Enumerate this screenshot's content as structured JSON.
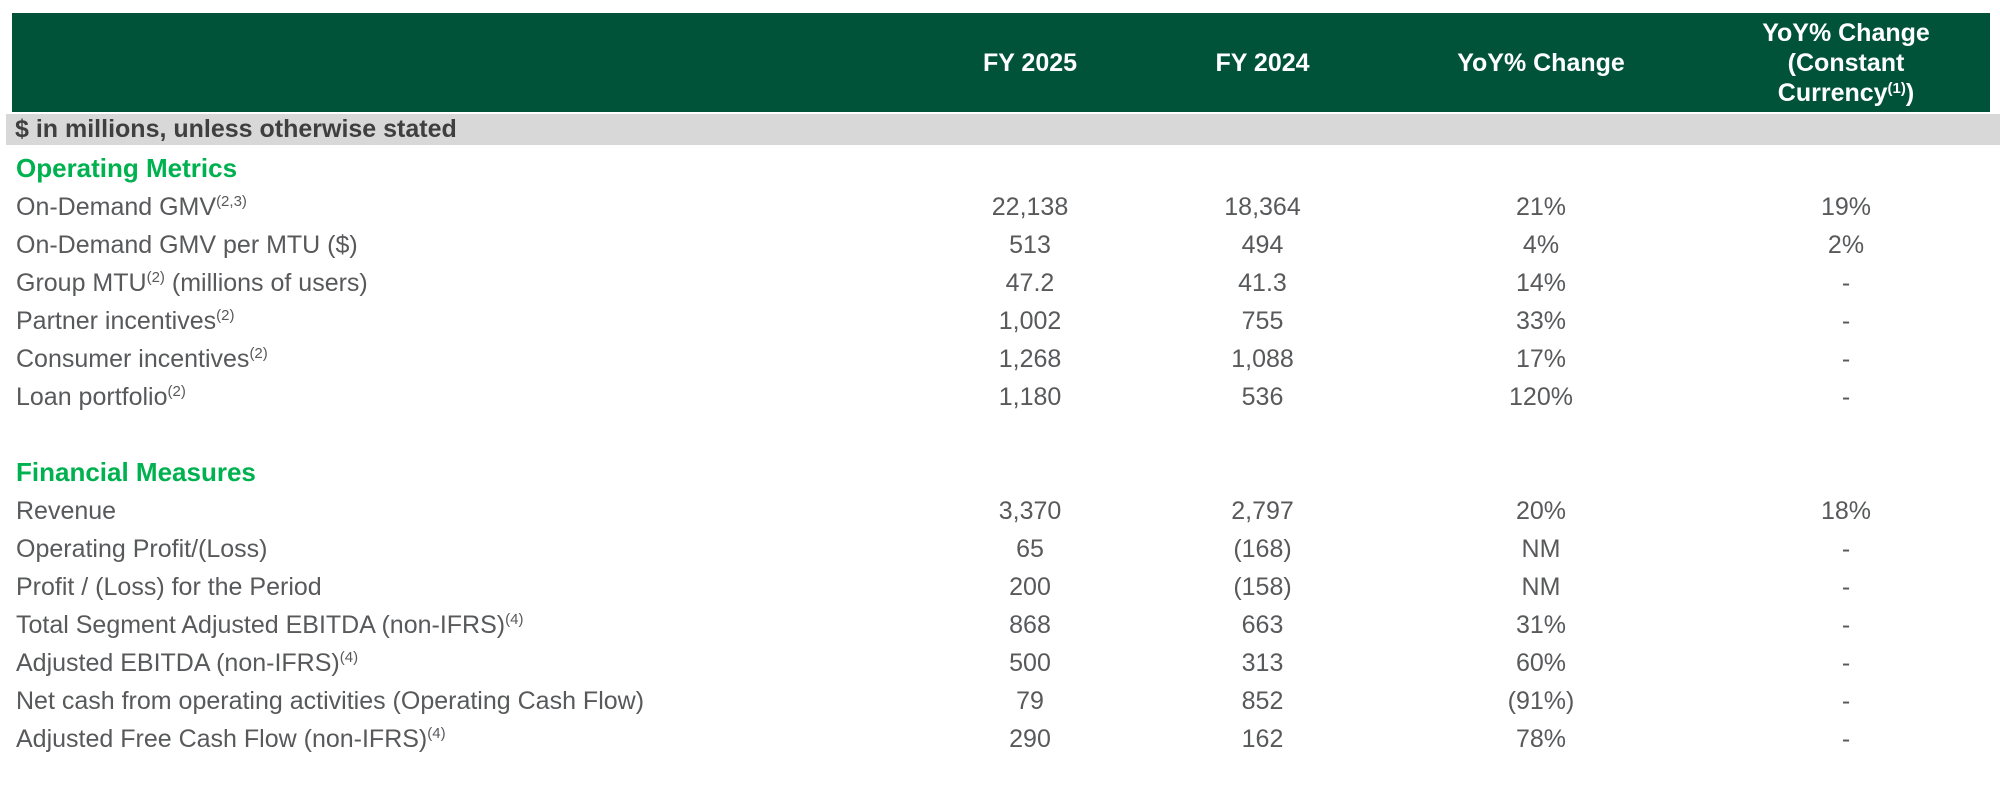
{
  "colors": {
    "header_bg": "#005339",
    "section_green": "#00B14F",
    "band_bg": "#D8D8D8",
    "band_text": "#3F3F3F",
    "row_text": "#58595B",
    "header_text": "#ffffff"
  },
  "header": {
    "col_fy2025": "FY 2025",
    "col_fy2024": "FY 2024",
    "col_yoy": "YoY% Change",
    "col_yoycc_line1": "YoY% Change",
    "col_yoycc_line2": "(Constant",
    "col_yoycc_line3_pre": "Currency",
    "col_yoycc_sup": "(1)",
    "col_yoycc_line3_post": ")"
  },
  "unit_note": "$ in millions, unless otherwise stated",
  "sections": {
    "operating": {
      "title": "Operating Metrics"
    },
    "financial": {
      "title": "Financial Measures"
    }
  },
  "rows": [
    {
      "pre": "On-Demand GMV",
      "sup": "(2,3)",
      "post": "",
      "v": [
        "22,138",
        "18,364",
        "21%",
        "19%"
      ]
    },
    {
      "pre": "On-Demand GMV per MTU ($)",
      "sup": "",
      "post": "",
      "v": [
        "513",
        "494",
        "4%",
        "2%"
      ]
    },
    {
      "pre": "Group MTU",
      "sup": "(2)",
      "post": " (millions of users)",
      "v": [
        "47.2",
        "41.3",
        "14%",
        "-"
      ]
    },
    {
      "pre": "Partner incentives",
      "sup": "(2)",
      "post": "",
      "v": [
        "1,002",
        "755",
        "33%",
        "-"
      ]
    },
    {
      "pre": "Consumer incentives",
      "sup": "(2)",
      "post": "",
      "v": [
        "1,268",
        "1,088",
        "17%",
        "-"
      ]
    },
    {
      "pre": "Loan portfolio",
      "sup": "(2)",
      "post": "",
      "v": [
        "1,180",
        "536",
        "120%",
        "-"
      ]
    },
    {
      "pre": "Revenue",
      "sup": "",
      "post": "",
      "v": [
        "3,370",
        "2,797",
        "20%",
        "18%"
      ]
    },
    {
      "pre": "Operating Profit/(Loss)",
      "sup": "",
      "post": "",
      "v": [
        "65",
        "(168)",
        "NM",
        "-"
      ]
    },
    {
      "pre": "Profit / (Loss) for the Period",
      "sup": "",
      "post": "",
      "v": [
        "200",
        "(158)",
        "NM",
        "-"
      ]
    },
    {
      "pre": "Total Segment Adjusted EBITDA (non-IFRS)",
      "sup": "(4)",
      "post": "",
      "v": [
        "868",
        "663",
        "31%",
        "-"
      ]
    },
    {
      "pre": "Adjusted EBITDA (non-IFRS)",
      "sup": "(4)",
      "post": "",
      "v": [
        "500",
        "313",
        "60%",
        "-"
      ]
    },
    {
      "pre": "Net cash from operating activities (Operating Cash Flow)",
      "sup": "",
      "post": "",
      "v": [
        "79",
        "852",
        "(91%)",
        "-"
      ]
    },
    {
      "pre": "Adjusted Free Cash Flow (non-IFRS)",
      "sup": "(4)",
      "post": "",
      "v": [
        "290",
        "162",
        "78%",
        "-"
      ]
    }
  ]
}
